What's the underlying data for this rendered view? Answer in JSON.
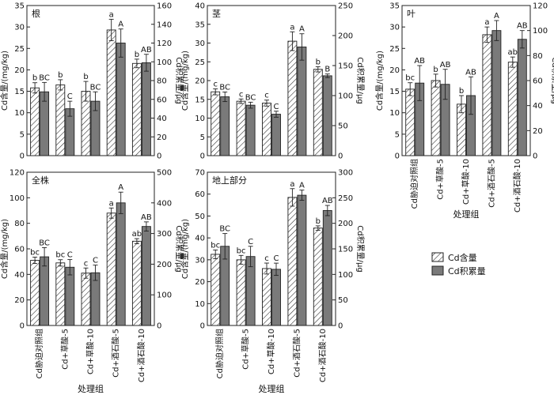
{
  "figure": {
    "y_left_label": "Cd含量/(mg/kg)",
    "y_right_label": "Cd积累量/μg",
    "x_label": "处理组",
    "legend": [
      "Cd含量",
      "Cd积累量"
    ],
    "colors": {
      "content": "#ffffff",
      "accum": "#7a7a7a",
      "stroke": "#222222"
    }
  },
  "chart_data": [
    {
      "type": "bar",
      "title": "根",
      "categories": [
        "Cd胁迫对照组",
        "Cd+草酸-5",
        "Cd+草酸-10",
        "Cd+酒石酸-5",
        "Cd+酒石酸-10"
      ],
      "ylim_left": [
        0,
        35
      ],
      "yticks_left": [
        0,
        5,
        10,
        15,
        20,
        25,
        30,
        35
      ],
      "ylim_right": [
        0,
        160
      ],
      "yticks_right": [
        0,
        20,
        40,
        60,
        80,
        100,
        120,
        140,
        160
      ],
      "series": [
        {
          "name": "Cd含量",
          "axis": "left",
          "values": [
            15.8,
            16.5,
            15.0,
            29.3,
            21.5
          ],
          "errors": [
            1.2,
            1.2,
            2.3,
            2.5,
            1.0
          ],
          "labels": [
            "b",
            "b",
            "b",
            "a",
            "b"
          ]
        },
        {
          "name": "Cd积累量",
          "axis": "right",
          "values": [
            68,
            50,
            58,
            120,
            99
          ],
          "errors": [
            10,
            8,
            10,
            15,
            9
          ],
          "labels": [
            "BC",
            "C",
            "BC",
            "A",
            "AB"
          ]
        }
      ],
      "show_x_labels": false
    },
    {
      "type": "bar",
      "title": "茎",
      "categories": [
        "Cd胁迫对照组",
        "Cd+草酸-5",
        "Cd+草酸-10",
        "Cd+酒石酸-5",
        "Cd+酒石酸-10"
      ],
      "ylim_left": [
        0,
        40
      ],
      "yticks_left": [
        0,
        5,
        10,
        15,
        20,
        25,
        30,
        35,
        40
      ],
      "ylim_right": [
        0,
        250
      ],
      "yticks_right": [
        0,
        50,
        100,
        150,
        200,
        250
      ],
      "series": [
        {
          "name": "Cd含量",
          "axis": "left",
          "values": [
            17.0,
            14.5,
            14.0,
            30.5,
            23.0
          ],
          "errors": [
            0.8,
            0.6,
            0.8,
            2.5,
            0.7
          ],
          "labels": [
            "c",
            "c",
            "c",
            "a",
            "b"
          ]
        },
        {
          "name": "Cd积累量",
          "axis": "right",
          "values": [
            98,
            84,
            69,
            181,
            133
          ],
          "errors": [
            8,
            5,
            5,
            22,
            3
          ],
          "labels": [
            "BC",
            "BC",
            "C",
            "A",
            "B"
          ]
        }
      ],
      "show_x_labels": false
    },
    {
      "type": "bar",
      "title": "叶",
      "categories": [
        "Cd胁迫对照组",
        "Cd+草酸-5",
        "Cd+草酸-10",
        "Cd+酒石酸-5",
        "Cd+酒石酸-10"
      ],
      "ylim_left": [
        0,
        35
      ],
      "yticks_left": [
        0,
        5,
        10,
        15,
        20,
        25,
        30,
        35
      ],
      "ylim_right": [
        0,
        120
      ],
      "yticks_right": [
        0,
        20,
        40,
        60,
        80,
        100,
        120
      ],
      "series": [
        {
          "name": "Cd含量",
          "axis": "left",
          "values": [
            15.5,
            17.5,
            12.0,
            28.2,
            21.8
          ],
          "errors": [
            1.5,
            1.5,
            2.0,
            1.8,
            1.2
          ],
          "labels": [
            "bc",
            "b",
            "b",
            "a",
            "ab"
          ]
        },
        {
          "name": "Cd积累量",
          "axis": "right",
          "values": [
            58,
            57,
            48,
            100,
            93
          ],
          "errors": [
            14,
            12,
            15,
            8,
            7
          ],
          "labels": [
            "AB",
            "AB",
            "AB",
            "A",
            "AB"
          ]
        }
      ],
      "show_x_labels": true
    },
    {
      "type": "bar",
      "title": "全株",
      "categories": [
        "Cd胁迫对照组",
        "Cd+草酸-5",
        "Cd+草酸-10",
        "Cd+酒石酸-5",
        "Cd+酒石酸-10"
      ],
      "ylim_left": [
        0,
        120
      ],
      "yticks_left": [
        0,
        20,
        40,
        60,
        80,
        100,
        120
      ],
      "ylim_right": [
        0,
        500
      ],
      "yticks_right": [
        0,
        100,
        200,
        300,
        400,
        500
      ],
      "series": [
        {
          "name": "Cd含量",
          "axis": "left",
          "values": [
            51,
            49,
            41,
            88,
            66
          ],
          "errors": [
            2.5,
            2.5,
            4,
            4,
            2
          ],
          "labels": [
            "bc",
            "bc",
            "c",
            "a",
            "ab"
          ]
        },
        {
          "name": "Cd积累量",
          "axis": "right",
          "values": [
            224,
            190,
            172,
            400,
            323
          ],
          "errors": [
            30,
            25,
            25,
            35,
            15
          ],
          "labels": [
            "BC",
            "C",
            "C",
            "A",
            "AB"
          ]
        }
      ],
      "show_x_labels": true
    },
    {
      "type": "bar",
      "title": "地上部分",
      "categories": [
        "Cd胁迫对照组",
        "Cd+草酸-5",
        "Cd+草酸-10",
        "Cd+酒石酸-5",
        "Cd+酒石酸-10"
      ],
      "ylim_left": [
        0,
        70
      ],
      "yticks_left": [
        0,
        10,
        20,
        30,
        40,
        50,
        60,
        70
      ],
      "ylim_right": [
        0,
        300
      ],
      "yticks_right": [
        0,
        50,
        100,
        150,
        200,
        250,
        300
      ],
      "series": [
        {
          "name": "Cd含量",
          "axis": "left",
          "values": [
            32.5,
            30.0,
            26.0,
            58.5,
            44.5
          ],
          "errors": [
            2,
            2,
            2.5,
            4,
            1
          ],
          "labels": [
            "bc",
            "bc",
            "c",
            "a",
            "b"
          ]
        },
        {
          "name": "Cd积累量",
          "axis": "right",
          "values": [
            155,
            135,
            110,
            255,
            225
          ],
          "errors": [
            25,
            20,
            12,
            10,
            10
          ],
          "labels": [
            "BC",
            "C",
            "C",
            "A",
            "AB"
          ]
        }
      ],
      "show_x_labels": true
    }
  ]
}
